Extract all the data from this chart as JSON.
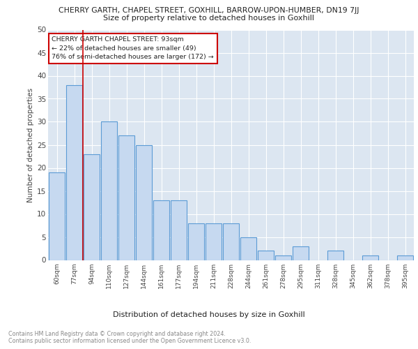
{
  "title": "CHERRY GARTH, CHAPEL STREET, GOXHILL, BARROW-UPON-HUMBER, DN19 7JJ",
  "subtitle": "Size of property relative to detached houses in Goxhill",
  "xlabel": "Distribution of detached houses by size in Goxhill",
  "ylabel": "Number of detached properties",
  "categories": [
    "60sqm",
    "77sqm",
    "94sqm",
    "110sqm",
    "127sqm",
    "144sqm",
    "161sqm",
    "177sqm",
    "194sqm",
    "211sqm",
    "228sqm",
    "244sqm",
    "261sqm",
    "278sqm",
    "295sqm",
    "311sqm",
    "328sqm",
    "345sqm",
    "362sqm",
    "378sqm",
    "395sqm"
  ],
  "values": [
    19,
    38,
    23,
    30,
    27,
    25,
    13,
    13,
    8,
    8,
    8,
    5,
    2,
    1,
    3,
    0,
    2,
    0,
    1,
    0,
    1
  ],
  "bar_color": "#c6d9f0",
  "bar_edge_color": "#5b9bd5",
  "plot_bg_color": "#dce6f1",
  "grid_color": "#ffffff",
  "red_line_x": 1.5,
  "annotation_text": "CHERRY GARTH CHAPEL STREET: 93sqm\n← 22% of detached houses are smaller (49)\n76% of semi-detached houses are larger (172) →",
  "annotation_box_edge": "#cc0000",
  "footer_line1": "Contains HM Land Registry data © Crown copyright and database right 2024.",
  "footer_line2": "Contains public sector information licensed under the Open Government Licence v3.0.",
  "ylim": [
    0,
    50
  ],
  "yticks": [
    0,
    5,
    10,
    15,
    20,
    25,
    30,
    35,
    40,
    45,
    50
  ]
}
